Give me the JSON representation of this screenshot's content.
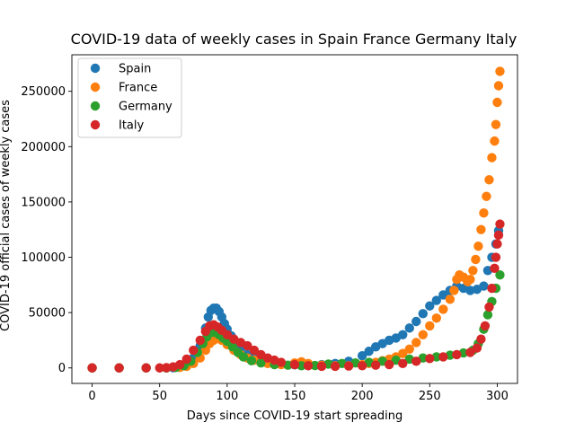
{
  "chart_data": {
    "type": "scatter",
    "title": "COVID-19 data of weekly cases in Spain France Germany Italy",
    "xlabel": "Days since COVID-19 start spreading",
    "ylabel": "COVID-19 official cases of weekly cases",
    "xlim": [
      -15,
      315
    ],
    "ylim": [
      -14000,
      283000
    ],
    "xticks": [
      0,
      50,
      100,
      150,
      200,
      250,
      300
    ],
    "yticks": [
      0,
      50000,
      100000,
      150000,
      200000,
      250000
    ],
    "grid": false,
    "legend_position": "top-left",
    "series": [
      {
        "name": "Spain",
        "color": "#1f77b4",
        "points": [
          [
            0,
            0
          ],
          [
            20,
            0
          ],
          [
            40,
            0
          ],
          [
            55,
            0
          ],
          [
            60,
            200
          ],
          [
            65,
            800
          ],
          [
            70,
            3000
          ],
          [
            75,
            9000
          ],
          [
            80,
            20000
          ],
          [
            84,
            36000
          ],
          [
            86,
            46000
          ],
          [
            88,
            52000
          ],
          [
            90,
            54000
          ],
          [
            92,
            54000
          ],
          [
            94,
            51000
          ],
          [
            96,
            46000
          ],
          [
            98,
            40000
          ],
          [
            100,
            35000
          ],
          [
            103,
            29000
          ],
          [
            106,
            23000
          ],
          [
            110,
            17000
          ],
          [
            115,
            12000
          ],
          [
            120,
            9000
          ],
          [
            125,
            6500
          ],
          [
            130,
            5000
          ],
          [
            140,
            3500
          ],
          [
            150,
            2800
          ],
          [
            160,
            2500
          ],
          [
            170,
            3000
          ],
          [
            180,
            4000
          ],
          [
            190,
            6000
          ],
          [
            200,
            11000
          ],
          [
            205,
            15000
          ],
          [
            210,
            19000
          ],
          [
            215,
            22000
          ],
          [
            220,
            25000
          ],
          [
            225,
            27000
          ],
          [
            230,
            30000
          ],
          [
            235,
            36000
          ],
          [
            240,
            42000
          ],
          [
            245,
            49000
          ],
          [
            250,
            56000
          ],
          [
            255,
            61000
          ],
          [
            260,
            66000
          ],
          [
            265,
            70000
          ],
          [
            270,
            74000
          ],
          [
            275,
            72000
          ],
          [
            280,
            70000
          ],
          [
            285,
            71000
          ],
          [
            290,
            74000
          ],
          [
            293,
            88000
          ],
          [
            296,
            100000
          ],
          [
            299,
            112000
          ],
          [
            301,
            124000
          ]
        ]
      },
      {
        "name": "France",
        "color": "#ff7f0e",
        "points": [
          [
            0,
            0
          ],
          [
            20,
            0
          ],
          [
            40,
            0
          ],
          [
            55,
            0
          ],
          [
            65,
            500
          ],
          [
            70,
            1500
          ],
          [
            75,
            4000
          ],
          [
            80,
            9000
          ],
          [
            84,
            16000
          ],
          [
            87,
            22000
          ],
          [
            90,
            25000
          ],
          [
            93,
            27000
          ],
          [
            96,
            25000
          ],
          [
            100,
            21000
          ],
          [
            105,
            16000
          ],
          [
            110,
            12000
          ],
          [
            115,
            9000
          ],
          [
            120,
            7000
          ],
          [
            125,
            5000
          ],
          [
            130,
            4000
          ],
          [
            140,
            3000
          ],
          [
            150,
            4500
          ],
          [
            155,
            5500
          ],
          [
            160,
            4000
          ],
          [
            170,
            2500
          ],
          [
            180,
            2000
          ],
          [
            190,
            2000
          ],
          [
            200,
            3000
          ],
          [
            205,
            4000
          ],
          [
            210,
            5000
          ],
          [
            215,
            6500
          ],
          [
            220,
            8000
          ],
          [
            225,
            10000
          ],
          [
            230,
            13000
          ],
          [
            235,
            17000
          ],
          [
            240,
            23000
          ],
          [
            245,
            30000
          ],
          [
            250,
            38000
          ],
          [
            255,
            45000
          ],
          [
            260,
            53000
          ],
          [
            265,
            62000
          ],
          [
            268,
            70000
          ],
          [
            270,
            80000
          ],
          [
            272,
            84000
          ],
          [
            275,
            82000
          ],
          [
            278,
            78000
          ],
          [
            280,
            80000
          ],
          [
            282,
            88000
          ],
          [
            284,
            98000
          ],
          [
            286,
            110000
          ],
          [
            288,
            125000
          ],
          [
            290,
            140000
          ],
          [
            292,
            155000
          ],
          [
            294,
            170000
          ],
          [
            296,
            190000
          ],
          [
            298,
            205000
          ],
          [
            299,
            220000
          ],
          [
            300,
            240000
          ],
          [
            301,
            255000
          ],
          [
            302,
            268000
          ]
        ]
      },
      {
        "name": "Germany",
        "color": "#2ca02c",
        "points": [
          [
            0,
            0
          ],
          [
            20,
            0
          ],
          [
            40,
            0
          ],
          [
            55,
            0
          ],
          [
            62,
            400
          ],
          [
            68,
            2000
          ],
          [
            73,
            6000
          ],
          [
            78,
            14000
          ],
          [
            82,
            22000
          ],
          [
            85,
            28000
          ],
          [
            88,
            32000
          ],
          [
            91,
            32000
          ],
          [
            94,
            30000
          ],
          [
            97,
            27000
          ],
          [
            100,
            24000
          ],
          [
            104,
            19000
          ],
          [
            108,
            14000
          ],
          [
            112,
            10000
          ],
          [
            118,
            6500
          ],
          [
            125,
            4500
          ],
          [
            135,
            3000
          ],
          [
            145,
            2500
          ],
          [
            155,
            2000
          ],
          [
            165,
            2200
          ],
          [
            175,
            3500
          ],
          [
            185,
            4000
          ],
          [
            195,
            4500
          ],
          [
            205,
            5000
          ],
          [
            215,
            6000
          ],
          [
            225,
            7000
          ],
          [
            235,
            8000
          ],
          [
            245,
            9000
          ],
          [
            255,
            10000
          ],
          [
            265,
            11500
          ],
          [
            275,
            13500
          ],
          [
            282,
            16000
          ],
          [
            286,
            22000
          ],
          [
            290,
            35000
          ],
          [
            293,
            48000
          ],
          [
            296,
            60000
          ],
          [
            299,
            72000
          ],
          [
            302,
            84000
          ]
        ]
      },
      {
        "name": "Italy",
        "color": "#d62728",
        "points": [
          [
            0,
            0
          ],
          [
            20,
            0
          ],
          [
            40,
            0
          ],
          [
            50,
            0
          ],
          [
            55,
            200
          ],
          [
            60,
            1000
          ],
          [
            65,
            3000
          ],
          [
            70,
            8000
          ],
          [
            75,
            16000
          ],
          [
            80,
            25000
          ],
          [
            84,
            33000
          ],
          [
            87,
            38000
          ],
          [
            90,
            39000
          ],
          [
            93,
            37000
          ],
          [
            96,
            34000
          ],
          [
            100,
            30000
          ],
          [
            105,
            26000
          ],
          [
            110,
            23000
          ],
          [
            115,
            20000
          ],
          [
            120,
            16000
          ],
          [
            125,
            12000
          ],
          [
            130,
            9000
          ],
          [
            135,
            7000
          ],
          [
            140,
            5000
          ],
          [
            150,
            3000
          ],
          [
            160,
            2000
          ],
          [
            170,
            1500
          ],
          [
            180,
            1500
          ],
          [
            190,
            1700
          ],
          [
            200,
            2000
          ],
          [
            210,
            2500
          ],
          [
            220,
            3000
          ],
          [
            230,
            4000
          ],
          [
            240,
            6000
          ],
          [
            250,
            8500
          ],
          [
            260,
            10000
          ],
          [
            270,
            12000
          ],
          [
            280,
            14000
          ],
          [
            285,
            18000
          ],
          [
            288,
            26000
          ],
          [
            291,
            38000
          ],
          [
            294,
            55000
          ],
          [
            296,
            72000
          ],
          [
            298,
            90000
          ],
          [
            299,
            100000
          ],
          [
            300,
            112000
          ],
          [
            301,
            120000
          ],
          [
            302,
            130000
          ]
        ]
      }
    ]
  }
}
